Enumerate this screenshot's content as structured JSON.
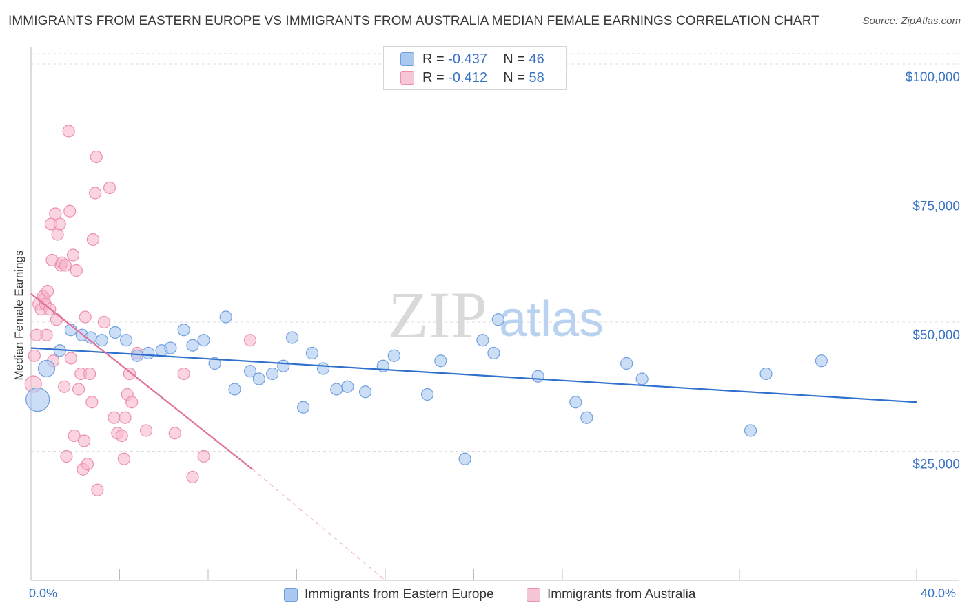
{
  "title": "IMMIGRANTS FROM EASTERN EUROPE VS IMMIGRANTS FROM AUSTRALIA MEDIAN FEMALE EARNINGS CORRELATION CHART",
  "source": "Source: ZipAtlas.com",
  "watermark": {
    "zip": "ZIP",
    "atlas": "atlas"
  },
  "legend": {
    "r_label": "R =",
    "n_label": "N =",
    "rows": [
      {
        "r": "-0.437",
        "n": "46"
      },
      {
        "r": "-0.412",
        "n": "58"
      }
    ]
  },
  "colors": {
    "blue_fill": "#aac8f0",
    "blue_stroke": "#6f9fe0",
    "blue_line": "#2f70cc",
    "pink_fill": "#f6b8cc",
    "pink_stroke": "#ec8fae",
    "pink_line": "#e0709a",
    "axis_text": "#3a73c4",
    "grid": "#dcdcdc"
  },
  "chart_data": {
    "type": "scatter",
    "xlabel": "",
    "ylabel": "Median Female Earnings",
    "xlim": [
      0,
      40
    ],
    "ylim": [
      0,
      102000
    ],
    "x_tick_labels": {
      "min": "0.0%",
      "max": "40.0%"
    },
    "y_ticks": [
      {
        "value": 25000,
        "label": "$25,000"
      },
      {
        "value": 50000,
        "label": "$50,000"
      },
      {
        "value": 75000,
        "label": "$75,000"
      },
      {
        "value": 100000,
        "label": "$100,000"
      }
    ],
    "series": [
      {
        "name": "Immigrants from Eastern Europe",
        "color": "blue",
        "trend": {
          "x": [
            0,
            40
          ],
          "y": [
            45000,
            34500
          ]
        },
        "points": [
          {
            "x": 0.3,
            "y": 35000,
            "size": 3
          },
          {
            "x": 0.7,
            "y": 41000,
            "size": 2
          },
          {
            "x": 1.3,
            "y": 44500
          },
          {
            "x": 1.8,
            "y": 48500
          },
          {
            "x": 2.3,
            "y": 47500
          },
          {
            "x": 2.7,
            "y": 47000
          },
          {
            "x": 3.2,
            "y": 46500
          },
          {
            "x": 3.8,
            "y": 48000
          },
          {
            "x": 4.3,
            "y": 46500
          },
          {
            "x": 4.8,
            "y": 43500
          },
          {
            "x": 5.3,
            "y": 44000
          },
          {
            "x": 5.9,
            "y": 44500
          },
          {
            "x": 6.3,
            "y": 45000
          },
          {
            "x": 6.9,
            "y": 48500
          },
          {
            "x": 7.3,
            "y": 45500
          },
          {
            "x": 7.8,
            "y": 46500
          },
          {
            "x": 8.3,
            "y": 42000
          },
          {
            "x": 8.8,
            "y": 51000
          },
          {
            "x": 9.2,
            "y": 37000
          },
          {
            "x": 9.9,
            "y": 40500
          },
          {
            "x": 10.3,
            "y": 39000
          },
          {
            "x": 10.9,
            "y": 40000
          },
          {
            "x": 11.4,
            "y": 41500
          },
          {
            "x": 11.8,
            "y": 47000
          },
          {
            "x": 12.3,
            "y": 33500
          },
          {
            "x": 12.7,
            "y": 44000
          },
          {
            "x": 13.2,
            "y": 41000
          },
          {
            "x": 13.8,
            "y": 37000
          },
          {
            "x": 14.3,
            "y": 37500
          },
          {
            "x": 15.1,
            "y": 36500
          },
          {
            "x": 15.9,
            "y": 41500
          },
          {
            "x": 16.4,
            "y": 43500
          },
          {
            "x": 17.9,
            "y": 36000
          },
          {
            "x": 18.5,
            "y": 42500
          },
          {
            "x": 19.6,
            "y": 23500
          },
          {
            "x": 20.4,
            "y": 46500
          },
          {
            "x": 20.9,
            "y": 44000
          },
          {
            "x": 21.1,
            "y": 50500
          },
          {
            "x": 22.9,
            "y": 39500
          },
          {
            "x": 24.6,
            "y": 34500
          },
          {
            "x": 25.1,
            "y": 31500
          },
          {
            "x": 26.9,
            "y": 42000
          },
          {
            "x": 27.6,
            "y": 39000
          },
          {
            "x": 32.5,
            "y": 29000
          },
          {
            "x": 33.2,
            "y": 40000
          },
          {
            "x": 35.7,
            "y": 42500
          }
        ]
      },
      {
        "name": "Immigrants from Australia",
        "color": "pink",
        "trend": {
          "x": [
            0,
            10
          ],
          "y": [
            55500,
            21500
          ]
        },
        "trend_dashed": {
          "x": [
            10,
            16
          ],
          "y": [
            21500,
            0
          ]
        },
        "points": [
          {
            "x": 0.1,
            "y": 38000,
            "size": 2
          },
          {
            "x": 0.15,
            "y": 43500
          },
          {
            "x": 0.25,
            "y": 47500
          },
          {
            "x": 0.35,
            "y": 53500
          },
          {
            "x": 0.45,
            "y": 52500
          },
          {
            "x": 0.55,
            "y": 55000
          },
          {
            "x": 0.6,
            "y": 54500
          },
          {
            "x": 0.65,
            "y": 53500
          },
          {
            "x": 0.75,
            "y": 56000
          },
          {
            "x": 0.85,
            "y": 52500
          },
          {
            "x": 0.7,
            "y": 47500
          },
          {
            "x": 0.9,
            "y": 69000
          },
          {
            "x": 0.95,
            "y": 62000
          },
          {
            "x": 1.0,
            "y": 42500
          },
          {
            "x": 1.1,
            "y": 71000
          },
          {
            "x": 1.15,
            "y": 50500
          },
          {
            "x": 1.2,
            "y": 67000
          },
          {
            "x": 1.3,
            "y": 69000
          },
          {
            "x": 1.35,
            "y": 61000
          },
          {
            "x": 1.4,
            "y": 61500
          },
          {
            "x": 1.5,
            "y": 37500
          },
          {
            "x": 1.55,
            "y": 61000
          },
          {
            "x": 1.6,
            "y": 24000
          },
          {
            "x": 1.7,
            "y": 87000
          },
          {
            "x": 1.75,
            "y": 71500
          },
          {
            "x": 1.8,
            "y": 43000
          },
          {
            "x": 1.9,
            "y": 63000
          },
          {
            "x": 1.95,
            "y": 28000
          },
          {
            "x": 2.05,
            "y": 60000
          },
          {
            "x": 2.15,
            "y": 37000
          },
          {
            "x": 2.25,
            "y": 40000
          },
          {
            "x": 2.35,
            "y": 21500
          },
          {
            "x": 2.4,
            "y": 27000
          },
          {
            "x": 2.45,
            "y": 51000
          },
          {
            "x": 2.55,
            "y": 22500
          },
          {
            "x": 2.65,
            "y": 40000
          },
          {
            "x": 2.75,
            "y": 34500
          },
          {
            "x": 2.8,
            "y": 66000
          },
          {
            "x": 2.9,
            "y": 75000
          },
          {
            "x": 2.95,
            "y": 82000
          },
          {
            "x": 3.0,
            "y": 17500
          },
          {
            "x": 3.3,
            "y": 50000
          },
          {
            "x": 3.55,
            "y": 76000
          },
          {
            "x": 3.75,
            "y": 31500
          },
          {
            "x": 3.9,
            "y": 28500
          },
          {
            "x": 4.1,
            "y": 28000
          },
          {
            "x": 4.2,
            "y": 23500
          },
          {
            "x": 4.25,
            "y": 31500
          },
          {
            "x": 4.35,
            "y": 36000
          },
          {
            "x": 4.45,
            "y": 40000
          },
          {
            "x": 4.55,
            "y": 34500
          },
          {
            "x": 4.8,
            "y": 44000
          },
          {
            "x": 5.2,
            "y": 29000
          },
          {
            "x": 6.5,
            "y": 28500
          },
          {
            "x": 6.9,
            "y": 40000
          },
          {
            "x": 7.3,
            "y": 20000
          },
          {
            "x": 7.8,
            "y": 24000
          },
          {
            "x": 9.9,
            "y": 46500
          }
        ]
      }
    ]
  }
}
